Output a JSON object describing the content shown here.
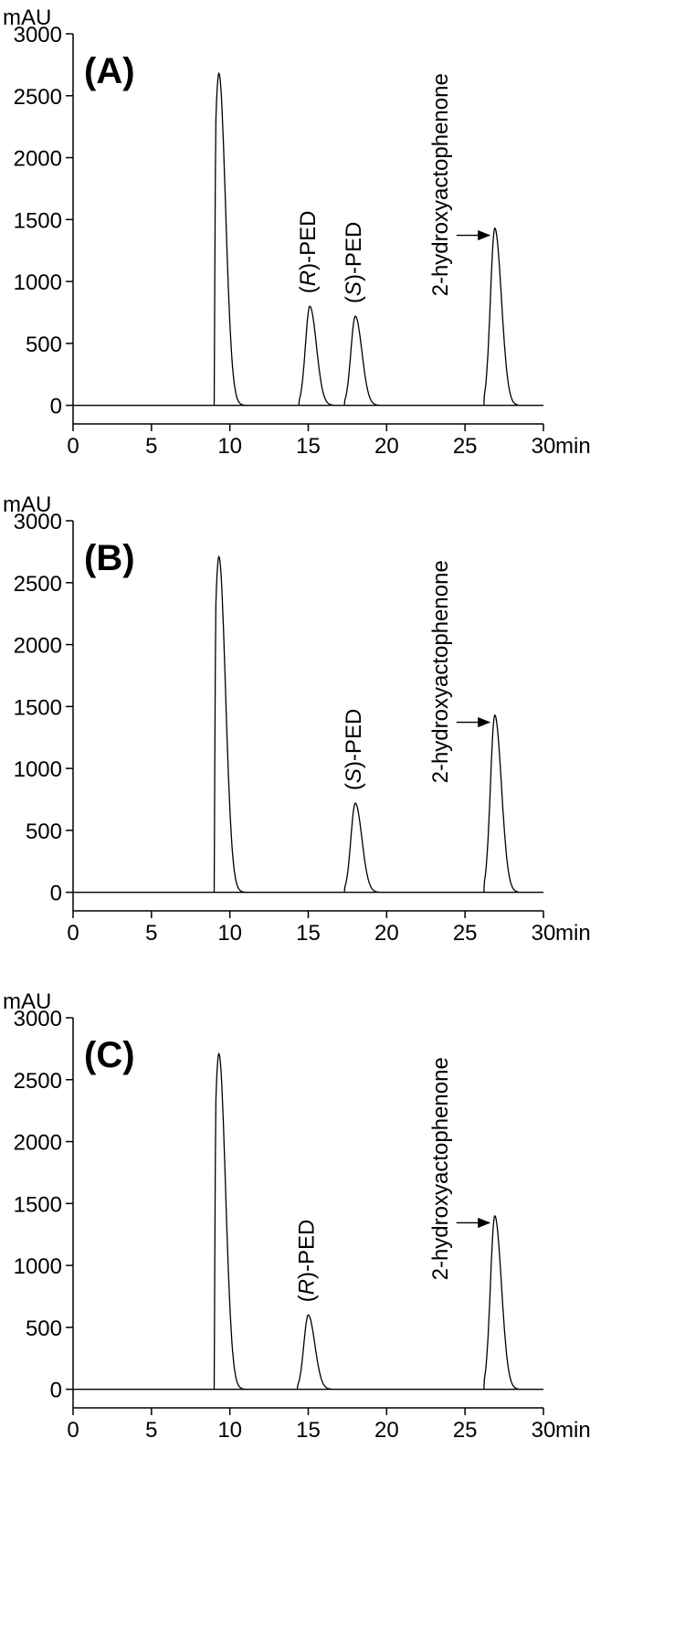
{
  "chart_data": [
    {
      "type": "line",
      "panel_label": "(A)",
      "ylabel": "mAU",
      "xlabel": "min",
      "xlim": [
        0,
        30
      ],
      "ylim": [
        -150,
        3000
      ],
      "xticks": [
        "0",
        "5",
        "10",
        "15",
        "20",
        "25",
        "30"
      ],
      "yticks": [
        "0",
        "500",
        "1000",
        "1500",
        "2000",
        "2500",
        "3000"
      ],
      "peaks": [
        {
          "rt": 9.3,
          "height": 2680,
          "label": "",
          "arrow": false
        },
        {
          "rt": 15.1,
          "height": 800,
          "label": "(R)-PED",
          "arrow": false
        },
        {
          "rt": 18.0,
          "height": 720,
          "label": "(S)-PED",
          "arrow": false
        },
        {
          "rt": 26.9,
          "height": 1430,
          "label": "2-hydroxyactophenone",
          "arrow": true
        }
      ]
    },
    {
      "type": "line",
      "panel_label": "(B)",
      "ylabel": "mAU",
      "xlabel": "min",
      "xlim": [
        0,
        30
      ],
      "ylim": [
        -150,
        3000
      ],
      "xticks": [
        "0",
        "5",
        "10",
        "15",
        "20",
        "25",
        "30"
      ],
      "yticks": [
        "0",
        "500",
        "1000",
        "1500",
        "2000",
        "2500",
        "3000"
      ],
      "peaks": [
        {
          "rt": 9.3,
          "height": 2710,
          "label": "",
          "arrow": false
        },
        {
          "rt": 18.0,
          "height": 720,
          "label": "(S)-PED",
          "arrow": false
        },
        {
          "rt": 26.9,
          "height": 1430,
          "label": "2-hydroxyactophenone",
          "arrow": true
        }
      ]
    },
    {
      "type": "line",
      "panel_label": "(C)",
      "ylabel": "mAU",
      "xlabel": "min",
      "xlim": [
        0,
        30
      ],
      "ylim": [
        -150,
        3000
      ],
      "xticks": [
        "0",
        "5",
        "10",
        "15",
        "20",
        "25",
        "30"
      ],
      "yticks": [
        "0",
        "500",
        "1000",
        "1500",
        "2000",
        "2500",
        "3000"
      ],
      "peaks": [
        {
          "rt": 9.3,
          "height": 2710,
          "label": "",
          "arrow": false
        },
        {
          "rt": 15.0,
          "height": 600,
          "label": "(R)-PED",
          "arrow": false
        },
        {
          "rt": 26.9,
          "height": 1400,
          "label": "2-hydroxyactophenone",
          "arrow": true
        }
      ]
    }
  ]
}
